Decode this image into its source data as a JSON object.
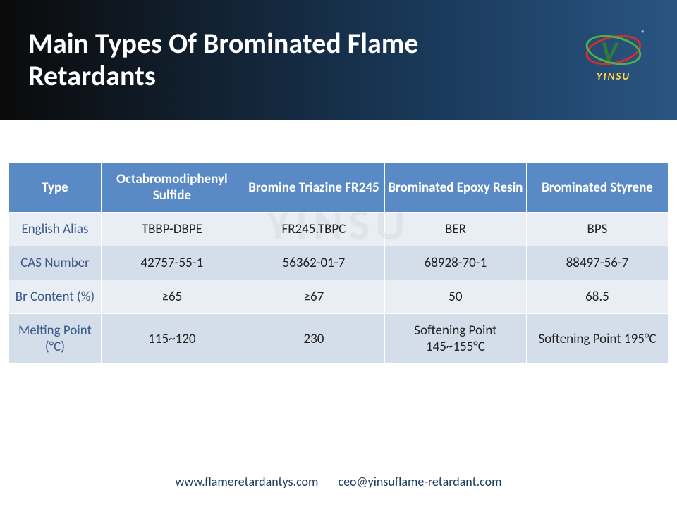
{
  "header": {
    "title": "Main Types Of Brominated Flame Retardants",
    "logo_text": "YINSU",
    "logo_reg": "®"
  },
  "watermark": "YINSU",
  "table": {
    "header_bg": "#5a8ac6",
    "header_fg": "#ffffff",
    "row_odd_bg": "#e9eef5",
    "row_even_bg": "#d4ddea",
    "label_color": "#3a5a8a",
    "columns": [
      "Type",
      "Octabromodiphenyl Sulfide",
      "Bromine Triazine FR245",
      "Brominated Epoxy Resin",
      "Brominated Styrene"
    ],
    "rows": [
      {
        "label": "English Alias",
        "cells": [
          "TBBP-DBPE",
          "FR245.TBPC",
          "BER",
          "BPS"
        ]
      },
      {
        "label": "CAS Number",
        "cells": [
          "42757-55-1",
          "56362-01-7",
          "68928-70-1",
          "88497-56-7"
        ]
      },
      {
        "label": "Br Content (%)",
        "cells": [
          "≥65",
          "≥67",
          "50",
          "68.5"
        ]
      },
      {
        "label": "Melting Point (°C)",
        "cells": [
          "115~120",
          "230",
          "Softening Point 145~155°C",
          "Softening Point 195°C"
        ]
      }
    ]
  },
  "footer": {
    "website": "www.flameretardantys.com",
    "email": "ceo@yinsuflame-retardant.com"
  }
}
